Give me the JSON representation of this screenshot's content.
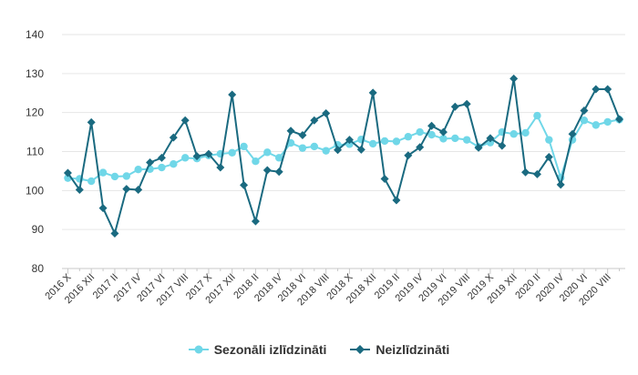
{
  "chart_data": {
    "type": "line",
    "categories": [
      "2016 X",
      "2016 XI",
      "2016 XII",
      "2017 I",
      "2017 II",
      "2017 III",
      "2017 IV",
      "2017 V",
      "2017 VI",
      "2017 VII",
      "2017 VIII",
      "2017 IX",
      "2017 X",
      "2017 XI",
      "2017 XII",
      "2018 I",
      "2018 II",
      "2018 III",
      "2018 IV",
      "2018 V",
      "2018 VI",
      "2018 VII",
      "2018 VIII",
      "2018 IX",
      "2018 X",
      "2018 XI",
      "2018 XII",
      "2019 I",
      "2019 II",
      "2019 III",
      "2019 IV",
      "2019 V",
      "2019 VI",
      "2019 VII",
      "2019 VIII",
      "2019 IX",
      "2019 X",
      "2019 XI",
      "2019 XII",
      "2020 I",
      "2020 II",
      "2020 III",
      "2020 IV",
      "2020 V",
      "2020 VI",
      "2020 VII",
      "2020 VIII",
      "2020 IX"
    ],
    "shown_tick_labels": [
      "2016 X",
      "2016 XII",
      "2017 II",
      "2017 IV",
      "2017 VI",
      "2017 VIII",
      "2017 X",
      "2017 XII",
      "2018 II",
      "2018 IV",
      "2018 VI",
      "2018 VIII",
      "2018 X",
      "2018 XII",
      "2019 II",
      "2019 IV",
      "2019 VI",
      "2019 VIII",
      "2019 X",
      "2019 XII",
      "2020 II",
      "2020 IV",
      "2020 VI",
      "2020 VIII"
    ],
    "series": [
      {
        "name": "Sezonāli izlīdzināti",
        "color": "#70d7e8",
        "marker": "circle",
        "values": [
          103.2,
          103.0,
          102.4,
          104.6,
          103.6,
          103.7,
          105.4,
          105.5,
          105.9,
          106.8,
          108.4,
          108.2,
          109.0,
          109.4,
          109.7,
          111.3,
          107.5,
          109.8,
          108.4,
          112.2,
          110.9,
          111.3,
          110.2,
          111.7,
          111.9,
          113.1,
          112.0,
          112.7,
          112.6,
          113.8,
          115.0,
          114.3,
          113.3,
          113.4,
          113.0,
          111.2,
          112.3,
          115.0,
          114.5,
          114.8,
          119.2,
          113.0,
          103.3,
          113.0,
          118.0,
          116.8,
          117.6,
          118.2
        ]
      },
      {
        "name": "Neizlīdzināti",
        "color": "#1a6a80",
        "marker": "diamond",
        "values": [
          104.5,
          100.2,
          117.5,
          95.5,
          89.0,
          100.4,
          100.2,
          107.2,
          108.4,
          113.6,
          118.0,
          108.8,
          109.4,
          105.9,
          124.6,
          101.4,
          92.1,
          105.2,
          104.8,
          115.3,
          114.2,
          118.0,
          119.8,
          110.4,
          113.0,
          110.5,
          125.1,
          103.0,
          97.5,
          109.0,
          111.1,
          116.6,
          115.0,
          121.5,
          122.2,
          111.0,
          113.4,
          111.5,
          128.7,
          104.7,
          104.2,
          108.6,
          101.5,
          114.5,
          120.5,
          126.0,
          126.0,
          118.3
        ]
      }
    ],
    "ylim": [
      80,
      140
    ],
    "yticks": [
      80,
      90,
      100,
      110,
      120,
      130,
      140
    ],
    "grid": true,
    "legend_position": "bottom-center"
  }
}
